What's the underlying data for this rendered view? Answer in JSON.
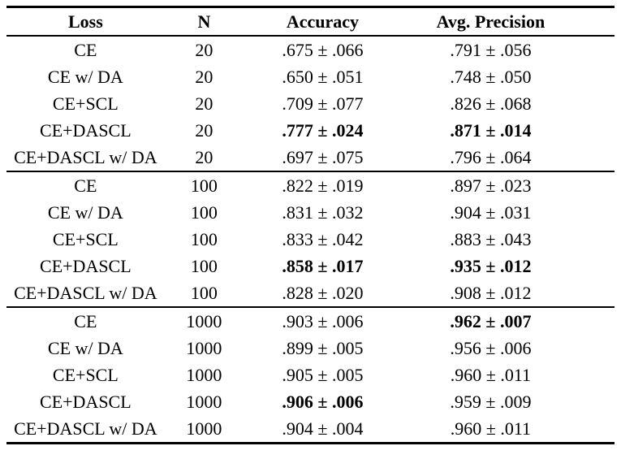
{
  "table": {
    "headers": [
      "Loss",
      "N",
      "Accuracy",
      "Avg. Precision"
    ],
    "groups": [
      {
        "rows": [
          {
            "loss": "CE",
            "n": "20",
            "accuracy": ".675 ± .066",
            "accuracy_bold": false,
            "precision": ".791 ± .056",
            "precision_bold": false
          },
          {
            "loss": "CE w/ DA",
            "n": "20",
            "accuracy": ".650 ± .051",
            "accuracy_bold": false,
            "precision": ".748 ± .050",
            "precision_bold": false
          },
          {
            "loss": "CE+SCL",
            "n": "20",
            "accuracy": ".709 ± .077",
            "accuracy_bold": false,
            "precision": ".826 ± .068",
            "precision_bold": false
          },
          {
            "loss": "CE+DASCL",
            "n": "20",
            "accuracy": ".777 ± .024",
            "accuracy_bold": true,
            "precision": ".871 ± .014",
            "precision_bold": true
          },
          {
            "loss": "CE+DASCL w/ DA",
            "n": "20",
            "accuracy": ".697 ± .075",
            "accuracy_bold": false,
            "precision": ".796 ± .064",
            "precision_bold": false
          }
        ]
      },
      {
        "rows": [
          {
            "loss": "CE",
            "n": "100",
            "accuracy": ".822 ± .019",
            "accuracy_bold": false,
            "precision": ".897 ± .023",
            "precision_bold": false
          },
          {
            "loss": "CE w/ DA",
            "n": "100",
            "accuracy": ".831 ± .032",
            "accuracy_bold": false,
            "precision": ".904 ± .031",
            "precision_bold": false
          },
          {
            "loss": "CE+SCL",
            "n": "100",
            "accuracy": ".833 ± .042",
            "accuracy_bold": false,
            "precision": ".883 ± .043",
            "precision_bold": false
          },
          {
            "loss": "CE+DASCL",
            "n": "100",
            "accuracy": ".858 ± .017",
            "accuracy_bold": true,
            "precision": ".935 ± .012",
            "precision_bold": true
          },
          {
            "loss": "CE+DASCL w/ DA",
            "n": "100",
            "accuracy": ".828 ± .020",
            "accuracy_bold": false,
            "precision": ".908 ± .012",
            "precision_bold": false
          }
        ]
      },
      {
        "rows": [
          {
            "loss": "CE",
            "n": "1000",
            "accuracy": ".903 ± .006",
            "accuracy_bold": false,
            "precision": ".962 ± .007",
            "precision_bold": true
          },
          {
            "loss": "CE w/ DA",
            "n": "1000",
            "accuracy": ".899 ± .005",
            "accuracy_bold": false,
            "precision": ".956 ± .006",
            "precision_bold": false
          },
          {
            "loss": "CE+SCL",
            "n": "1000",
            "accuracy": ".905 ± .005",
            "accuracy_bold": false,
            "precision": ".960 ± .011",
            "precision_bold": false
          },
          {
            "loss": "CE+DASCL",
            "n": "1000",
            "accuracy": ".906 ± .006",
            "accuracy_bold": true,
            "precision": ".959 ± .009",
            "precision_bold": false
          },
          {
            "loss": "CE+DASCL w/ DA",
            "n": "1000",
            "accuracy": ".904 ± .004",
            "accuracy_bold": false,
            "precision": ".960 ± .011",
            "precision_bold": false
          }
        ]
      }
    ]
  }
}
